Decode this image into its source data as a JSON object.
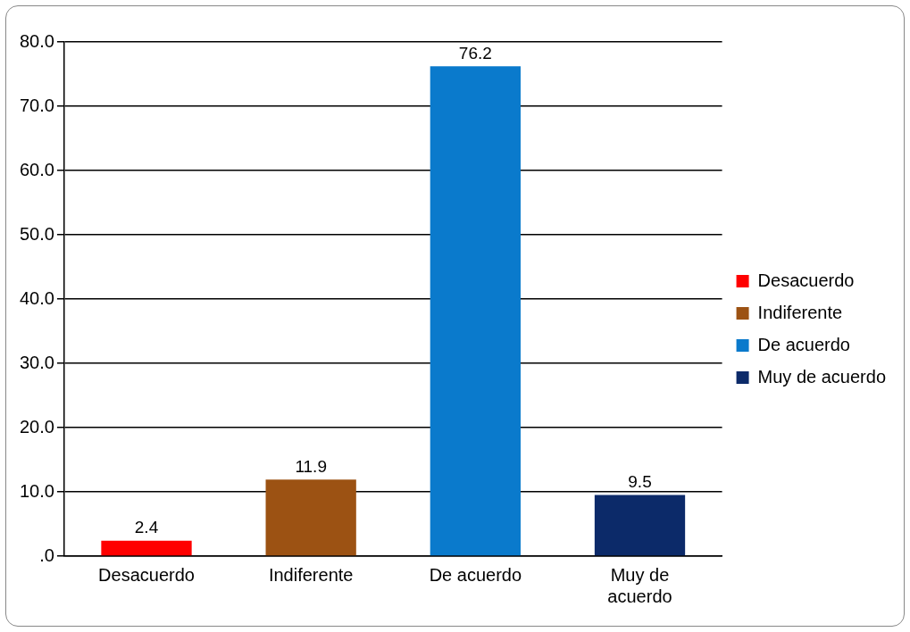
{
  "chart_data": {
    "type": "bar",
    "categories": [
      "Desacuerdo",
      "Indiferente",
      "De acuerdo",
      "Muy de acuerdo"
    ],
    "series": [
      {
        "name": "Desacuerdo",
        "color": "#ff0000",
        "values": [
          2.4,
          null,
          null,
          null
        ]
      },
      {
        "name": "Indiferente",
        "color": "#9c5213",
        "values": [
          null,
          11.9,
          null,
          null
        ]
      },
      {
        "name": "De acuerdo",
        "color": "#0a7acc",
        "values": [
          null,
          null,
          76.2,
          null
        ]
      },
      {
        "name": "Muy de acuerdo",
        "color": "#0c2a69",
        "values": [
          null,
          null,
          null,
          9.5
        ]
      }
    ],
    "ylim": [
      0,
      80
    ],
    "yticks": [
      {
        "value": 0,
        "label": ".0"
      },
      {
        "value": 10,
        "label": "10.0"
      },
      {
        "value": 20,
        "label": "20.0"
      },
      {
        "value": 30,
        "label": "30.0"
      },
      {
        "value": 40,
        "label": "40.0"
      },
      {
        "value": 50,
        "label": "50.0"
      },
      {
        "value": 60,
        "label": "60.0"
      },
      {
        "value": 70,
        "label": "70.0"
      },
      {
        "value": 80,
        "label": "80.0"
      }
    ],
    "grid": "y",
    "legend": "right",
    "data_labels": true
  }
}
